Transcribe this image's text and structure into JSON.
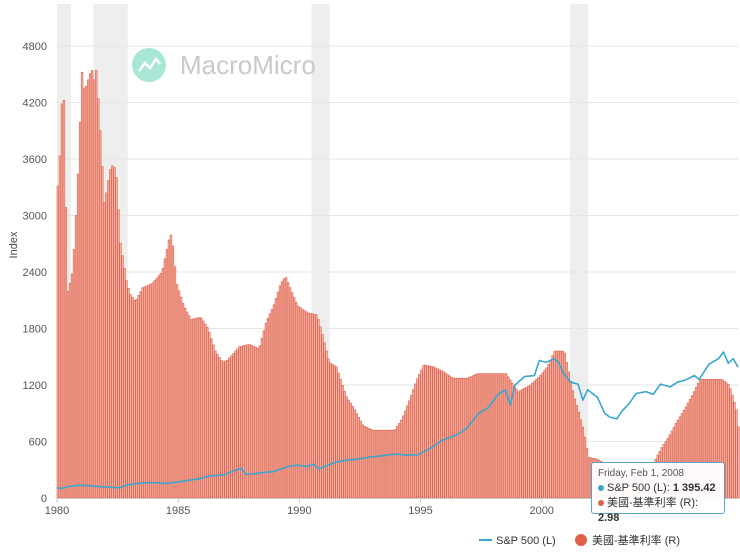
{
  "watermark": {
    "brand": "MacroMicro"
  },
  "colors": {
    "sp500": "#3aa6cf",
    "rate": "#e0604a",
    "rate_fill": "#f2b3a6",
    "recession": "#eeeeee",
    "grid": "#e6e6e6"
  },
  "chart_data": {
    "type": "bar+line",
    "title": "",
    "xlabel": "",
    "ylabel": "Index",
    "x_range": [
      1980.0,
      2008.1
    ],
    "x_ticks": [
      "1980",
      "1985",
      "1990",
      "1995",
      "2000",
      "2005"
    ],
    "y_left": {
      "range": [
        0,
        4800
      ],
      "ticks": [
        "0",
        "600",
        "1200",
        "1800",
        "2400",
        "3000",
        "3600",
        "4200",
        "4800"
      ]
    },
    "y_right_note": "rate axis not displayed; bar heights drawn at 240 index units per 1%",
    "recessions": [
      [
        1980.0,
        1980.58
      ],
      [
        1981.5,
        1982.92
      ],
      [
        1990.5,
        1991.25
      ],
      [
        2001.17,
        2001.92
      ]
    ],
    "series": [
      {
        "name": "S&P 500 (L)",
        "type": "line",
        "points": [
          [
            1980.0,
            108
          ],
          [
            1980.2,
            102
          ],
          [
            1980.5,
            122
          ],
          [
            1980.9,
            135
          ],
          [
            1981.2,
            134
          ],
          [
            1981.6,
            124
          ],
          [
            1982.0,
            116
          ],
          [
            1982.6,
            108
          ],
          [
            1982.9,
            139
          ],
          [
            1983.3,
            155
          ],
          [
            1983.9,
            165
          ],
          [
            1984.5,
            155
          ],
          [
            1984.9,
            167
          ],
          [
            1985.5,
            190
          ],
          [
            1985.9,
            205
          ],
          [
            1986.3,
            235
          ],
          [
            1986.9,
            245
          ],
          [
            1987.3,
            290
          ],
          [
            1987.6,
            318
          ],
          [
            1987.8,
            250
          ],
          [
            1988.0,
            255
          ],
          [
            1988.5,
            270
          ],
          [
            1988.9,
            278
          ],
          [
            1989.5,
            330
          ],
          [
            1989.9,
            350
          ],
          [
            1990.3,
            335
          ],
          [
            1990.6,
            360
          ],
          [
            1990.8,
            310
          ],
          [
            1991.0,
            330
          ],
          [
            1991.5,
            380
          ],
          [
            1991.9,
            400
          ],
          [
            1992.5,
            415
          ],
          [
            1992.9,
            435
          ],
          [
            1993.5,
            450
          ],
          [
            1993.9,
            466
          ],
          [
            1994.5,
            455
          ],
          [
            1994.9,
            460
          ],
          [
            1995.5,
            540
          ],
          [
            1995.9,
            615
          ],
          [
            1996.5,
            670
          ],
          [
            1996.9,
            740
          ],
          [
            1997.4,
            900
          ],
          [
            1997.8,
            960
          ],
          [
            1998.2,
            1100
          ],
          [
            1998.5,
            1150
          ],
          [
            1998.7,
            990
          ],
          [
            1998.9,
            1200
          ],
          [
            1999.3,
            1290
          ],
          [
            1999.7,
            1300
          ],
          [
            1999.9,
            1460
          ],
          [
            2000.2,
            1440
          ],
          [
            2000.5,
            1480
          ],
          [
            2000.7,
            1440
          ],
          [
            2000.9,
            1320
          ],
          [
            2001.2,
            1230
          ],
          [
            2001.5,
            1210
          ],
          [
            2001.7,
            1040
          ],
          [
            2001.9,
            1150
          ],
          [
            2002.3,
            1070
          ],
          [
            2002.6,
            900
          ],
          [
            2002.8,
            860
          ],
          [
            2003.1,
            840
          ],
          [
            2003.3,
            920
          ],
          [
            2003.6,
            1000
          ],
          [
            2003.9,
            1110
          ],
          [
            2004.3,
            1130
          ],
          [
            2004.6,
            1100
          ],
          [
            2004.9,
            1210
          ],
          [
            2005.3,
            1180
          ],
          [
            2005.6,
            1230
          ],
          [
            2005.9,
            1250
          ],
          [
            2006.3,
            1300
          ],
          [
            2006.5,
            1260
          ],
          [
            2006.9,
            1420
          ],
          [
            2007.3,
            1480
          ],
          [
            2007.5,
            1550
          ],
          [
            2007.7,
            1430
          ],
          [
            2007.9,
            1480
          ],
          [
            2008.1,
            1390
          ]
        ]
      },
      {
        "name": "美國-基準利率 (R)",
        "type": "bar",
        "points": [
          [
            1980.0,
            13.8
          ],
          [
            1980.05,
            14.0
          ],
          [
            1980.15,
            17.4
          ],
          [
            1980.25,
            17.6
          ],
          [
            1980.33,
            13.0
          ],
          [
            1980.42,
            9.0
          ],
          [
            1980.5,
            9.5
          ],
          [
            1980.6,
            10.0
          ],
          [
            1980.7,
            11.5
          ],
          [
            1980.8,
            13.5
          ],
          [
            1980.9,
            16.0
          ],
          [
            1980.98,
            19.0
          ],
          [
            1981.1,
            18.0
          ],
          [
            1981.25,
            18.5
          ],
          [
            1981.4,
            19.0
          ],
          [
            1981.5,
            18.5
          ],
          [
            1981.6,
            19.0
          ],
          [
            1981.7,
            17.0
          ],
          [
            1981.8,
            15.5
          ],
          [
            1981.9,
            13.0
          ],
          [
            1982.0,
            13.5
          ],
          [
            1982.15,
            14.5
          ],
          [
            1982.3,
            14.8
          ],
          [
            1982.45,
            14.0
          ],
          [
            1982.55,
            11.5
          ],
          [
            1982.7,
            10.5
          ],
          [
            1982.85,
            9.5
          ],
          [
            1983.0,
            9.0
          ],
          [
            1983.2,
            8.7
          ],
          [
            1983.5,
            9.3
          ],
          [
            1983.9,
            9.5
          ],
          [
            1984.3,
            10.0
          ],
          [
            1984.6,
            11.5
          ],
          [
            1984.7,
            11.7
          ],
          [
            1984.9,
            9.5
          ],
          [
            1985.2,
            8.5
          ],
          [
            1985.5,
            7.9
          ],
          [
            1985.9,
            8.0
          ],
          [
            1986.2,
            7.5
          ],
          [
            1986.5,
            6.5
          ],
          [
            1986.8,
            6.0
          ],
          [
            1987.0,
            6.1
          ],
          [
            1987.5,
            6.7
          ],
          [
            1987.9,
            6.8
          ],
          [
            1988.3,
            6.6
          ],
          [
            1988.6,
            7.8
          ],
          [
            1988.9,
            8.5
          ],
          [
            1989.2,
            9.5
          ],
          [
            1989.4,
            9.8
          ],
          [
            1989.7,
            9.0
          ],
          [
            1989.9,
            8.5
          ],
          [
            1990.3,
            8.2
          ],
          [
            1990.7,
            8.1
          ],
          [
            1990.9,
            7.3
          ],
          [
            1991.2,
            6.0
          ],
          [
            1991.5,
            5.8
          ],
          [
            1991.9,
            4.5
          ],
          [
            1992.2,
            4.0
          ],
          [
            1992.6,
            3.2
          ],
          [
            1993.0,
            3.0
          ],
          [
            1993.5,
            3.0
          ],
          [
            1993.9,
            3.0
          ],
          [
            1994.2,
            3.5
          ],
          [
            1994.5,
            4.3
          ],
          [
            1994.8,
            5.2
          ],
          [
            1995.1,
            5.9
          ],
          [
            1995.5,
            5.8
          ],
          [
            1995.9,
            5.6
          ],
          [
            1996.3,
            5.3
          ],
          [
            1996.9,
            5.3
          ],
          [
            1997.3,
            5.5
          ],
          [
            1997.9,
            5.5
          ],
          [
            1998.5,
            5.5
          ],
          [
            1998.8,
            5.0
          ],
          [
            1999.0,
            4.7
          ],
          [
            1999.5,
            5.0
          ],
          [
            1999.9,
            5.4
          ],
          [
            2000.2,
            5.8
          ],
          [
            2000.5,
            6.5
          ],
          [
            2000.9,
            6.5
          ],
          [
            2001.1,
            5.5
          ],
          [
            2001.3,
            4.5
          ],
          [
            2001.5,
            3.8
          ],
          [
            2001.7,
            3.0
          ],
          [
            2001.9,
            1.8
          ],
          [
            2002.3,
            1.7
          ],
          [
            2002.9,
            1.3
          ],
          [
            2003.5,
            1.0
          ],
          [
            2003.9,
            1.0
          ],
          [
            2004.5,
            1.25
          ],
          [
            2004.7,
            1.8
          ],
          [
            2004.9,
            2.2
          ],
          [
            2005.2,
            2.7
          ],
          [
            2005.5,
            3.3
          ],
          [
            2005.9,
            4.0
          ],
          [
            2006.2,
            4.6
          ],
          [
            2006.5,
            5.25
          ],
          [
            2006.9,
            5.25
          ],
          [
            2007.4,
            5.25
          ],
          [
            2007.7,
            5.0
          ],
          [
            2007.85,
            4.5
          ],
          [
            2008.0,
            3.9
          ],
          [
            2008.1,
            3.0
          ]
        ]
      }
    ],
    "legend": [
      "S&P 500 (L)",
      "美國-基準利率 (R)"
    ]
  },
  "tooltip": {
    "date": "Friday, Feb 1, 2008",
    "sp_label": "S&P 500 (L): ",
    "sp_value": "1 395.42",
    "rate_label": "美國-基準利率 (R): ",
    "rate_value": "2.98"
  }
}
